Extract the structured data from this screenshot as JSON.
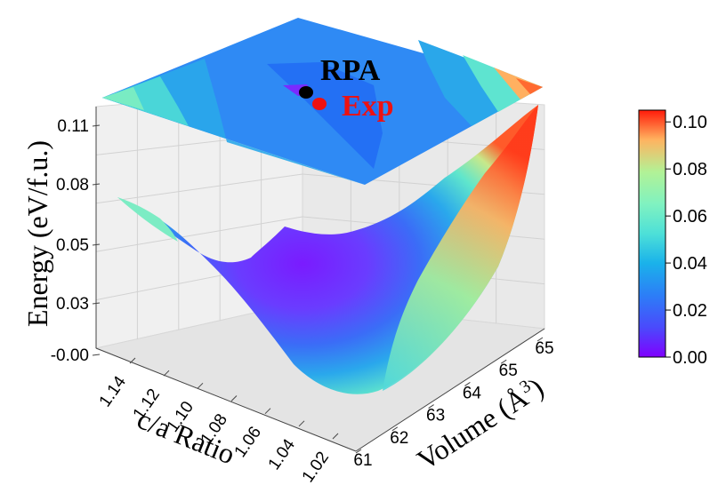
{
  "chart_data": {
    "type": "surface3d",
    "zlabel": "Energy (eV/f.u.)",
    "ylabel": "c/a Ratio",
    "xlabel": "Volume (Å³)",
    "xlabel_base": "Volume (Å",
    "xlabel_sup": "3",
    "xlabel_end": ")",
    "x_ticks": [
      "61",
      "62",
      "63",
      "64",
      "65",
      "65"
    ],
    "y_ticks": [
      "1.14",
      "1.12",
      "1.10",
      "1.08",
      "1.06",
      "1.04",
      "1.02"
    ],
    "z_ticks": [
      "-0.00",
      "0.03",
      "0.05",
      "0.08",
      "0.11"
    ],
    "zlim": [
      0.0,
      0.11
    ],
    "colormap": "rainbow",
    "colorbar": {
      "ticks": [
        "0.00",
        "0.02",
        "0.04",
        "0.06",
        "0.08",
        "0.10"
      ],
      "range": [
        0.0,
        0.105
      ]
    },
    "annotations": [
      {
        "text": "RPA",
        "color": "#000000"
      },
      {
        "text": "Exp",
        "color": "#ee1111"
      }
    ],
    "grid": true
  }
}
